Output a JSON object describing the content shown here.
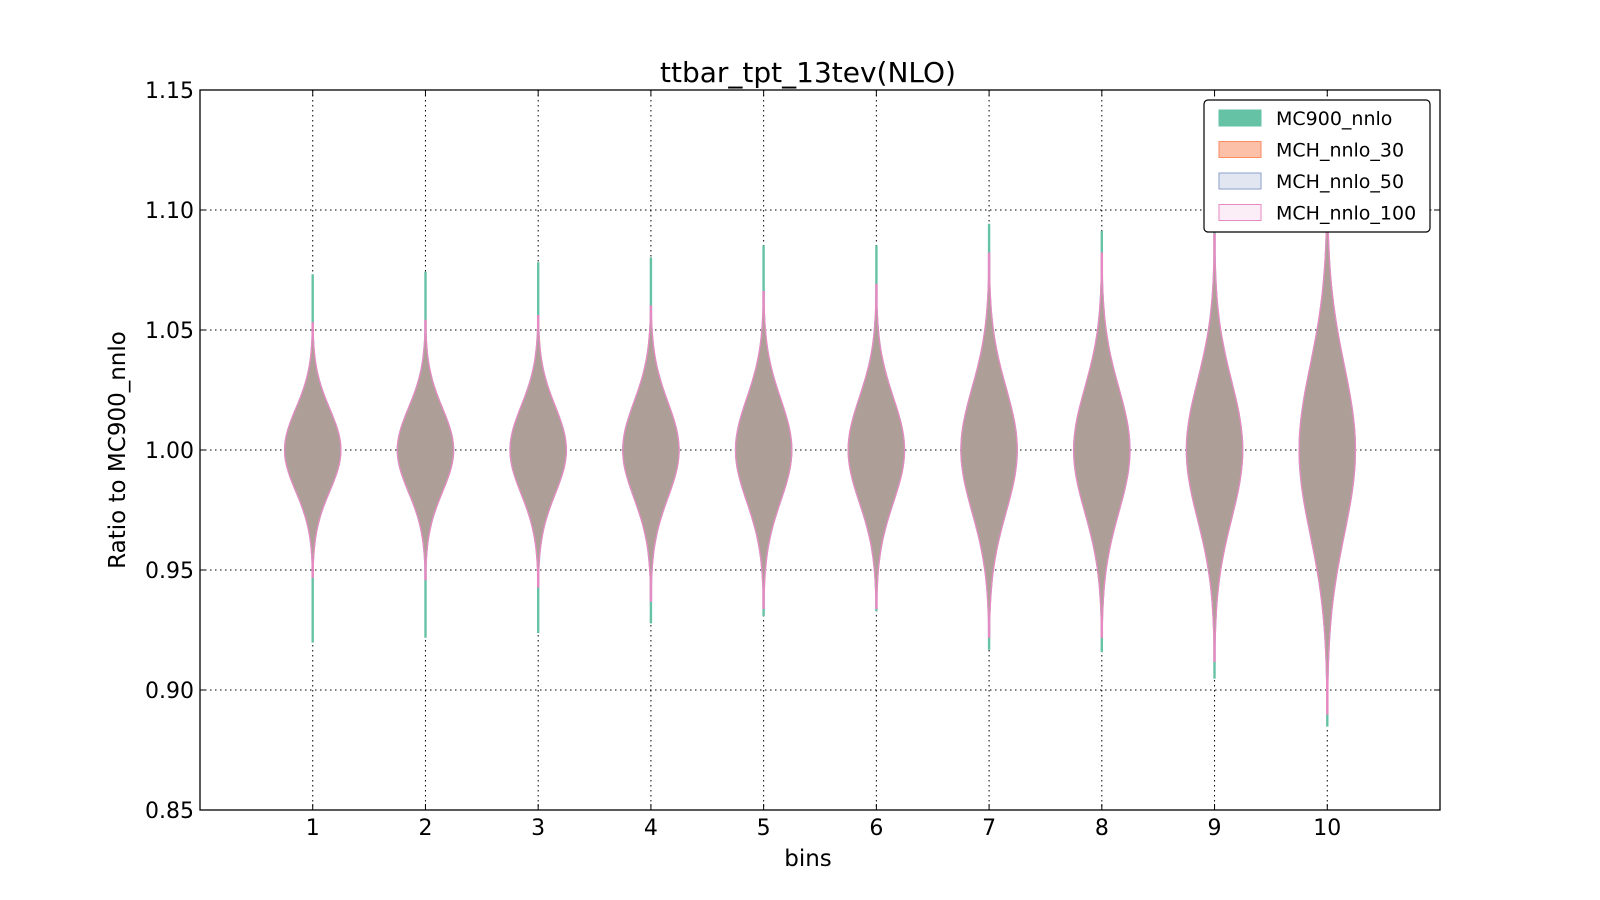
{
  "chart_data": {
    "type": "violin",
    "title": "ttbar_tpt_13tev(NLO)",
    "xlabel": "bins",
    "ylabel": "Ratio to MC900_nnlo",
    "ylim": [
      0.85,
      1.15
    ],
    "xlim": [
      0,
      11
    ],
    "yticks": [
      "0.85",
      "0.90",
      "0.95",
      "1.00",
      "1.05",
      "1.10",
      "1.15"
    ],
    "categories": [
      "1",
      "2",
      "3",
      "4",
      "5",
      "6",
      "7",
      "8",
      "9",
      "10"
    ],
    "grid": true,
    "legend_position": "top-right",
    "legend": [
      {
        "name": "MC900_nnlo",
        "fill": "#66c2a5",
        "stroke": "#66c2a5"
      },
      {
        "name": "MCH_nnlo_30",
        "fill": "#fcc0a8",
        "stroke": "#fc8d62"
      },
      {
        "name": "MCH_nnlo_50",
        "fill": "#e1e6f1",
        "stroke": "#8da0cb"
      },
      {
        "name": "MCH_nnlo_100",
        "fill": "#fbeef6",
        "stroke": "#e78ac3"
      }
    ],
    "violin_fill": "#ad9f98",
    "series": [
      {
        "name": "MC900_nnlo",
        "min": [
          0.92,
          0.922,
          0.924,
          0.928,
          0.931,
          0.933,
          0.917,
          0.916,
          0.905,
          0.885
        ],
        "max": [
          1.073,
          1.074,
          1.078,
          1.08,
          1.085,
          1.085,
          1.094,
          1.091,
          1.095,
          1.11
        ]
      },
      {
        "name": "MCH_nnlo_100",
        "min": [
          0.947,
          0.946,
          0.943,
          0.937,
          0.934,
          0.934,
          0.922,
          0.922,
          0.912,
          0.89
        ],
        "max": [
          1.053,
          1.054,
          1.056,
          1.06,
          1.066,
          1.069,
          1.082,
          1.082,
          1.09,
          1.108
        ]
      }
    ],
    "violin_halfwidth_data": 0.25
  }
}
